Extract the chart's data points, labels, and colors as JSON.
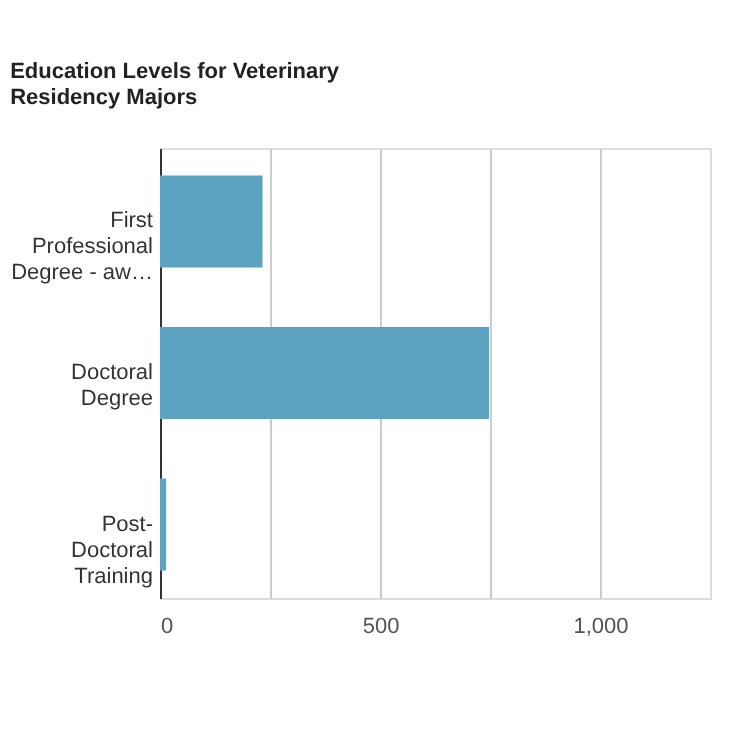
{
  "chart_data": {
    "type": "bar",
    "orientation": "horizontal",
    "title": "Education Levels for Veterinary Residency Majors",
    "categories": [
      "First Professional Degree - aw…",
      "Doctoral Degree",
      "Post-Doctoral Training"
    ],
    "values": [
      233,
      748,
      14
    ],
    "color": "#5ba3c0",
    "xlim": [
      0,
      1250
    ],
    "xticks": [
      0,
      {
        "value": 250,
        "label": null
      },
      500,
      {
        "value": 750,
        "label": null
      },
      {
        "value": 1000,
        "label": "1,000"
      }
    ],
    "grid": "x"
  }
}
